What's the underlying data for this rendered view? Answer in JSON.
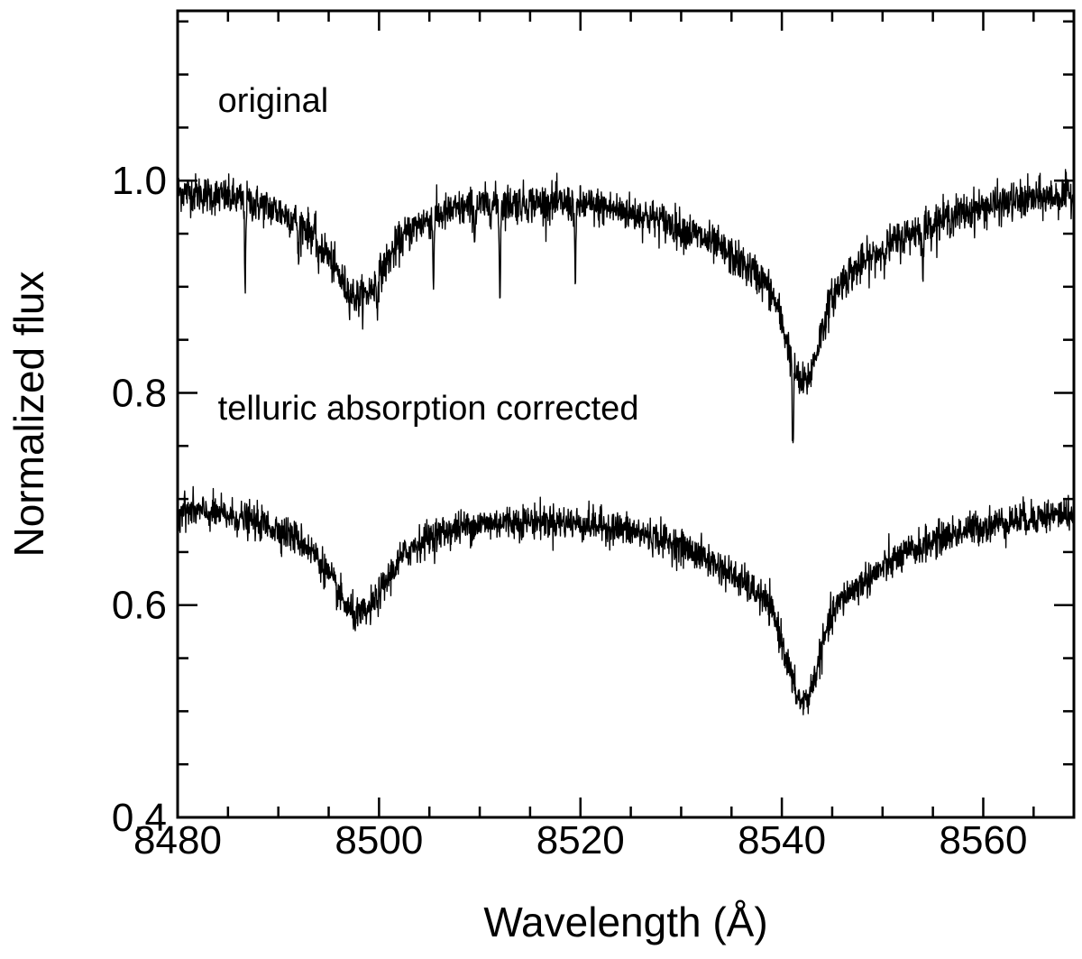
{
  "chart_data": {
    "type": "line",
    "title": "",
    "xlabel": "Wavelength (Å)",
    "ylabel": "Normalized flux",
    "xlim": [
      8480,
      8569
    ],
    "ylim": [
      0.4,
      1.16
    ],
    "xticks": [
      8480,
      8500,
      8520,
      8540,
      8560
    ],
    "xtick_labels": [
      "8480",
      "8500",
      "8520",
      "8540",
      "8560"
    ],
    "x_minor_step": 5,
    "yticks": [
      0.4,
      0.6,
      0.8,
      1.0
    ],
    "ytick_labels": [
      "0.4",
      "0.6",
      "0.8",
      "1.0"
    ],
    "y_minor_step": 0.05,
    "grid": false,
    "legend": "none",
    "annotations": [
      {
        "text": "original",
        "x": 8484,
        "y": 1.065
      },
      {
        "text": "telluric absorption corrected",
        "x": 8484,
        "y": 0.775
      }
    ],
    "series": [
      {
        "name": "original",
        "baseline": 1.0,
        "noise": 0.009,
        "ca_lines": [
          {
            "center": 8498.0,
            "depth": 0.105,
            "core_width": 2.2,
            "wing_width": 7.0
          },
          {
            "center": 8542.1,
            "depth": 0.19,
            "core_width": 1.5,
            "wing_width": 10.0
          }
        ],
        "broad_depression": {
          "center": 8521,
          "width": 40,
          "depth": 0.0
        },
        "telluric_lines": [
          {
            "wavelength": 8486.7,
            "depth": 0.075
          },
          {
            "wavelength": 8492.0,
            "depth": 0.04
          },
          {
            "wavelength": 8494.0,
            "depth": 0.03
          },
          {
            "wavelength": 8499.8,
            "depth": 0.025
          },
          {
            "wavelength": 8505.4,
            "depth": 0.06
          },
          {
            "wavelength": 8509.5,
            "depth": 0.03
          },
          {
            "wavelength": 8512.0,
            "depth": 0.09
          },
          {
            "wavelength": 8519.5,
            "depth": 0.08
          },
          {
            "wavelength": 8541.1,
            "depth": 0.09
          },
          {
            "wavelength": 8554.0,
            "depth": 0.05
          }
        ]
      },
      {
        "name": "telluric absorption corrected",
        "baseline": 0.7,
        "noise": 0.008,
        "ca_lines": [
          {
            "center": 8498.0,
            "depth": 0.105,
            "core_width": 2.2,
            "wing_width": 7.0
          },
          {
            "center": 8542.1,
            "depth": 0.19,
            "core_width": 1.5,
            "wing_width": 10.0
          }
        ],
        "telluric_lines": []
      }
    ]
  }
}
